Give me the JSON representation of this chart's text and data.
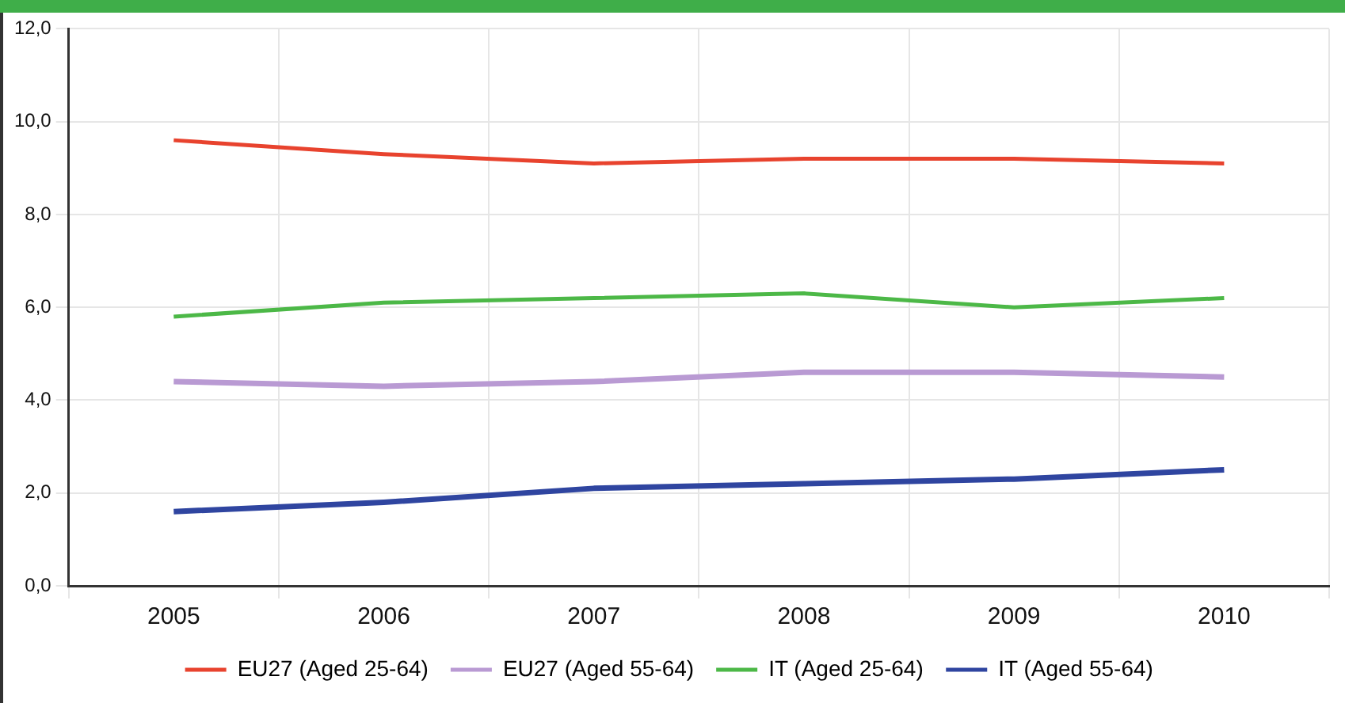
{
  "chart_data": {
    "type": "line",
    "categories": [
      "2005",
      "2006",
      "2007",
      "2008",
      "2009",
      "2010"
    ],
    "series": [
      {
        "name": "EU27 (Aged 25-64)",
        "color": "#e8432e",
        "values": [
          9.6,
          9.3,
          9.1,
          9.2,
          9.2,
          9.1
        ]
      },
      {
        "name": "EU27 (Aged 55-64)",
        "color": "#b99ad3",
        "values": [
          4.4,
          4.3,
          4.4,
          4.6,
          4.6,
          4.5
        ]
      },
      {
        "name": "IT (Aged 25-64)",
        "color": "#4cb847",
        "values": [
          5.8,
          6.1,
          6.2,
          6.3,
          6.0,
          6.2
        ]
      },
      {
        "name": "IT (Aged 55-64)",
        "color": "#2f45a0",
        "values": [
          1.6,
          1.8,
          2.1,
          2.2,
          2.3,
          2.5
        ]
      }
    ],
    "ylim": [
      0,
      12
    ],
    "yticks": [
      {
        "value": 0,
        "label": "0,0"
      },
      {
        "value": 2,
        "label": "2,0"
      },
      {
        "value": 4,
        "label": "4,0"
      },
      {
        "value": 6,
        "label": "6,0"
      },
      {
        "value": 8,
        "label": "8,0"
      },
      {
        "value": 10,
        "label": "10,0"
      },
      {
        "value": 12,
        "label": "12,0"
      }
    ],
    "grid": true,
    "legend": "bottom",
    "marker": "none",
    "line_style": "solid"
  }
}
